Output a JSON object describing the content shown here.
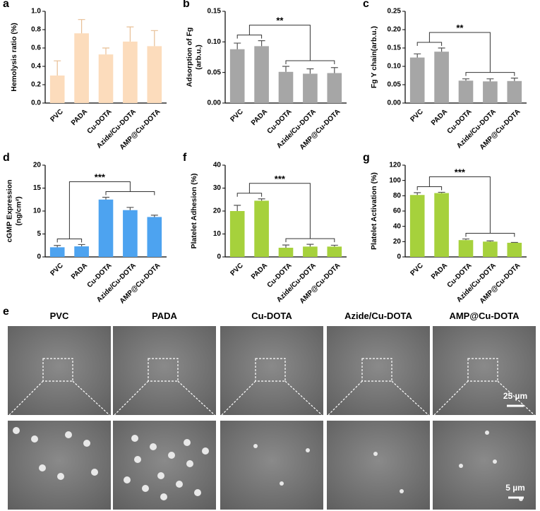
{
  "chart_data": [
    {
      "type": "bar",
      "panel": "a",
      "y_label": [
        "Hemolysis ratio (%)"
      ],
      "categories": [
        "PVC",
        "PADA",
        "Cu-DOTA",
        "Azide/Cu-DOTA",
        "AMP@Cu-DOTA"
      ],
      "values": [
        0.3,
        0.76,
        0.53,
        0.67,
        0.62
      ],
      "errors": [
        0.16,
        0.15,
        0.07,
        0.16,
        0.17
      ],
      "color": "#fcdcbc",
      "ylim": [
        0,
        1.0
      ],
      "yticks": [
        {
          "value": 0,
          "label": "0.0"
        },
        0.2,
        0.4,
        0.6,
        0.8,
        {
          "value": 1.0,
          "label": "1.0"
        }
      ]
    },
    {
      "type": "bar",
      "panel": "b",
      "y_label": [
        "Adsorption of Fg",
        "(arb.u.)"
      ],
      "annotation": "**",
      "categories": [
        "PVC",
        "PADA",
        "Cu-DOTA",
        "Azide/Cu-DOTA",
        "AMP@Cu-DOTA"
      ],
      "values": [
        0.088,
        0.093,
        0.051,
        0.048,
        0.049
      ],
      "errors": [
        0.01,
        0.009,
        0.009,
        0.008,
        0.009
      ],
      "color": "#a6a6a6",
      "ylim": [
        0,
        0.15
      ],
      "yticks": [
        {
          "value": 0,
          "label": "0.00"
        },
        {
          "value": 0.05,
          "label": "0.05"
        },
        {
          "value": 0.1,
          "label": "0.10"
        },
        {
          "value": 0.15,
          "label": "0.15"
        }
      ]
    },
    {
      "type": "bar",
      "panel": "c",
      "y_label": [
        "Fg Y chain(arb.u.)"
      ],
      "annotation": "**",
      "categories": [
        "PVC",
        "PADA",
        "Cu-DOTA",
        "Azide/Cu-DOTA",
        "AMP@Cu-DOTA"
      ],
      "values": [
        0.124,
        0.14,
        0.061,
        0.059,
        0.06
      ],
      "errors": [
        0.01,
        0.01,
        0.005,
        0.007,
        0.008
      ],
      "color": "#a6a6a6",
      "ylim": [
        0,
        0.25
      ],
      "yticks": [
        {
          "value": 0,
          "label": "0.00"
        },
        {
          "value": 0.05,
          "label": "0.05"
        },
        {
          "value": 0.1,
          "label": "0.10"
        },
        {
          "value": 0.15,
          "label": "0.15"
        },
        {
          "value": 0.2,
          "label": "0.20"
        },
        {
          "value": 0.25,
          "label": "0.25"
        }
      ]
    },
    {
      "type": "bar",
      "panel": "d",
      "y_label": [
        "cGMP Expression",
        "(ng/cm²)"
      ],
      "annotation": "***",
      "categories": [
        "PVC",
        "PADA",
        "Cu-DOTA",
        "Azide/Cu-DOTA",
        "AMP@Cu-DOTA"
      ],
      "values": [
        2.1,
        2.3,
        12.5,
        10.2,
        8.7
      ],
      "errors": [
        0.4,
        0.4,
        0.5,
        0.6,
        0.4
      ],
      "color": "#4da3f0",
      "ylim": [
        0,
        20
      ],
      "yticks": [
        0,
        5,
        10,
        15,
        20
      ]
    },
    {
      "type": "bar",
      "panel": "f",
      "y_label": [
        "Platelet Adhesion (%)"
      ],
      "annotation": "***",
      "categories": [
        "PVC",
        "PADA",
        "Cu-DOTA",
        "Azide/Cu-DOTA",
        "AMP@Cu-DOTA"
      ],
      "values": [
        20,
        24.5,
        4,
        4.5,
        4.5
      ],
      "errors": [
        2.5,
        0.8,
        1.2,
        1.0,
        0.6
      ],
      "color": "#a6d13c",
      "ylim": [
        0,
        40
      ],
      "yticks": [
        0,
        10,
        20,
        30,
        40
      ]
    },
    {
      "type": "bar",
      "panel": "g",
      "y_label": [
        "Platelet Activation (%)"
      ],
      "annotation": "***",
      "categories": [
        "PVC",
        "PADA",
        "Cu-DOTA",
        "Azide/Cu-DOTA",
        "AMP@Cu-DOTA"
      ],
      "values": [
        81,
        83.5,
        22,
        20,
        18.5
      ],
      "errors": [
        3,
        1,
        1.5,
        1,
        0.5
      ],
      "color": "#a6d13c",
      "ylim": [
        0,
        120
      ],
      "yticks": [
        0,
        20,
        40,
        60,
        80,
        100,
        120
      ]
    }
  ],
  "sem": {
    "panel": "e",
    "columns": [
      "PVC",
      "PADA",
      "Cu-DOTA",
      "Azide/Cu-DOTA",
      "AMP@Cu-DOTA"
    ],
    "scale_top": "25 µm",
    "scale_bottom": "5 µm"
  }
}
